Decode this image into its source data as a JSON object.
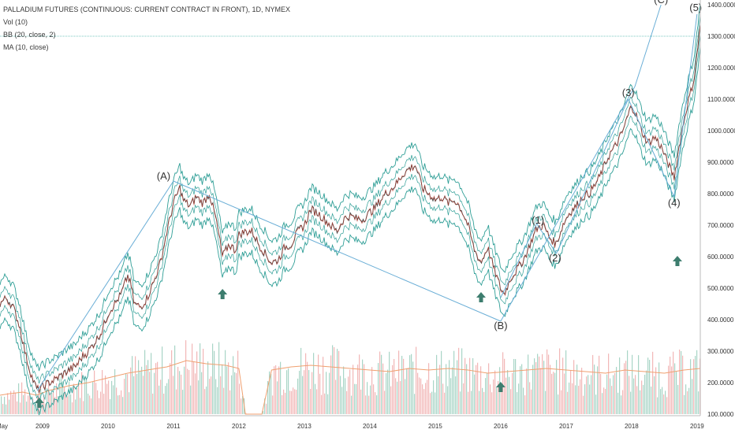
{
  "legend": {
    "title": "PALLADIUM FUTURES (CONTINUOUS: CURRENT CONTRACT IN FRONT), 1D, NYMEX",
    "vol": "Vol (10)",
    "bb": "BB (20, close, 2)",
    "ma": "MA (10, close)"
  },
  "colors": {
    "price_line": "#4a4a4a",
    "bb_band": "#2e9e96",
    "ma": "#c0392b",
    "volume_up": "#a8d5c6",
    "volume_down": "#f2b7b7",
    "volume_ma": "#f0a070",
    "wave_line": "#6aaed6",
    "arrow": "#3d7d6e",
    "hline": "#4db6ac",
    "axis_text": "#333333"
  },
  "chart_data": {
    "type": "line",
    "title": "PALLADIUM FUTURES (CONTINUOUS: CURRENT CONTRACT IN FRONT), 1D, NYMEX",
    "x_ticks": [
      "May",
      "2009",
      "2010",
      "2011",
      "2012",
      "2013",
      "2014",
      "2015",
      "2016",
      "2017",
      "2018",
      "2019"
    ],
    "y_ticks": [
      "1400.0000",
      "1300.0000",
      "1200.0000",
      "1100.0000",
      "1000.0000",
      "900.0000",
      "800.0000",
      "700.0000",
      "600.0000",
      "500.0000",
      "400.0000",
      "300.0000",
      "200.0000",
      "100.0000"
    ],
    "ylim": [
      95,
      1405
    ],
    "xlim": [
      2008.35,
      2019.05
    ],
    "horizontal_line": 1300,
    "price": [
      [
        2008.35,
        450
      ],
      [
        2008.45,
        470
      ],
      [
        2008.55,
        440
      ],
      [
        2008.65,
        380
      ],
      [
        2008.75,
        280
      ],
      [
        2008.85,
        210
      ],
      [
        2008.92,
        175
      ],
      [
        2009.0,
        185
      ],
      [
        2009.1,
        200
      ],
      [
        2009.2,
        210
      ],
      [
        2009.3,
        225
      ],
      [
        2009.4,
        240
      ],
      [
        2009.5,
        250
      ],
      [
        2009.6,
        280
      ],
      [
        2009.7,
        300
      ],
      [
        2009.8,
        330
      ],
      [
        2009.9,
        360
      ],
      [
        2010.0,
        420
      ],
      [
        2010.1,
        450
      ],
      [
        2010.2,
        480
      ],
      [
        2010.3,
        540
      ],
      [
        2010.35,
        510
      ],
      [
        2010.4,
        450
      ],
      [
        2010.5,
        440
      ],
      [
        2010.6,
        470
      ],
      [
        2010.7,
        520
      ],
      [
        2010.8,
        580
      ],
      [
        2010.9,
        680
      ],
      [
        2011.0,
        770
      ],
      [
        2011.1,
        820
      ],
      [
        2011.15,
        780
      ],
      [
        2011.25,
        760
      ],
      [
        2011.35,
        790
      ],
      [
        2011.45,
        770
      ],
      [
        2011.55,
        800
      ],
      [
        2011.65,
        720
      ],
      [
        2011.75,
        600
      ],
      [
        2011.85,
        640
      ],
      [
        2011.95,
        620
      ],
      [
        2012.0,
        670
      ],
      [
        2012.1,
        680
      ],
      [
        2012.2,
        680
      ],
      [
        2012.3,
        640
      ],
      [
        2012.4,
        610
      ],
      [
        2012.5,
        580
      ],
      [
        2012.6,
        590
      ],
      [
        2012.7,
        630
      ],
      [
        2012.8,
        640
      ],
      [
        2012.9,
        680
      ],
      [
        2013.0,
        700
      ],
      [
        2013.1,
        750
      ],
      [
        2013.2,
        740
      ],
      [
        2013.3,
        720
      ],
      [
        2013.4,
        700
      ],
      [
        2013.5,
        680
      ],
      [
        2013.6,
        720
      ],
      [
        2013.7,
        730
      ],
      [
        2013.8,
        720
      ],
      [
        2013.9,
        720
      ],
      [
        2014.0,
        740
      ],
      [
        2014.1,
        760
      ],
      [
        2014.2,
        790
      ],
      [
        2014.3,
        810
      ],
      [
        2014.4,
        830
      ],
      [
        2014.5,
        860
      ],
      [
        2014.6,
        880
      ],
      [
        2014.7,
        890
      ],
      [
        2014.8,
        820
      ],
      [
        2014.9,
        800
      ],
      [
        2015.0,
        780
      ],
      [
        2015.1,
        790
      ],
      [
        2015.2,
        770
      ],
      [
        2015.3,
        780
      ],
      [
        2015.4,
        750
      ],
      [
        2015.5,
        700
      ],
      [
        2015.6,
        620
      ],
      [
        2015.7,
        580
      ],
      [
        2015.8,
        630
      ],
      [
        2015.9,
        560
      ],
      [
        2016.0,
        500
      ],
      [
        2016.05,
        480
      ],
      [
        2016.15,
        530
      ],
      [
        2016.25,
        560
      ],
      [
        2016.35,
        590
      ],
      [
        2016.45,
        640
      ],
      [
        2016.55,
        690
      ],
      [
        2016.65,
        700
      ],
      [
        2016.75,
        660
      ],
      [
        2016.85,
        640
      ],
      [
        2016.95,
        700
      ],
      [
        2017.05,
        740
      ],
      [
        2017.15,
        760
      ],
      [
        2017.25,
        790
      ],
      [
        2017.35,
        800
      ],
      [
        2017.45,
        830
      ],
      [
        2017.55,
        870
      ],
      [
        2017.65,
        920
      ],
      [
        2017.75,
        950
      ],
      [
        2017.85,
        990
      ],
      [
        2017.95,
        1050
      ],
      [
        2018.0,
        1080
      ],
      [
        2018.05,
        1060
      ],
      [
        2018.15,
        1000
      ],
      [
        2018.25,
        960
      ],
      [
        2018.35,
        980
      ],
      [
        2018.45,
        950
      ],
      [
        2018.55,
        900
      ],
      [
        2018.65,
        850
      ],
      [
        2018.75,
        980
      ],
      [
        2018.85,
        1080
      ],
      [
        2018.95,
        1160
      ],
      [
        2019.0,
        1240
      ],
      [
        2019.05,
        1340
      ]
    ],
    "volume": [
      [
        2008.35,
        160
      ],
      [
        2008.5,
        165
      ],
      [
        2008.7,
        170
      ],
      [
        2008.9,
        160
      ],
      [
        2009.1,
        175
      ],
      [
        2009.4,
        190
      ],
      [
        2009.7,
        200
      ],
      [
        2010.0,
        215
      ],
      [
        2010.3,
        230
      ],
      [
        2010.6,
        240
      ],
      [
        2010.9,
        250
      ],
      [
        2011.2,
        270
      ],
      [
        2011.5,
        260
      ],
      [
        2011.8,
        255
      ],
      [
        2012.0,
        245
      ],
      [
        2012.1,
        100
      ],
      [
        2012.35,
        100
      ],
      [
        2012.5,
        240
      ],
      [
        2012.8,
        250
      ],
      [
        2013.1,
        255
      ],
      [
        2013.4,
        250
      ],
      [
        2013.7,
        245
      ],
      [
        2014.0,
        240
      ],
      [
        2014.3,
        235
      ],
      [
        2014.6,
        245
      ],
      [
        2014.9,
        240
      ],
      [
        2015.2,
        245
      ],
      [
        2015.5,
        240
      ],
      [
        2015.8,
        230
      ],
      [
        2016.1,
        235
      ],
      [
        2016.4,
        240
      ],
      [
        2016.7,
        245
      ],
      [
        2017.0,
        240
      ],
      [
        2017.3,
        235
      ],
      [
        2017.6,
        230
      ],
      [
        2017.9,
        240
      ],
      [
        2018.2,
        235
      ],
      [
        2018.5,
        230
      ],
      [
        2018.8,
        240
      ],
      [
        2019.05,
        245
      ]
    ],
    "wave_lines": [
      [
        [
          2008.92,
          175
        ],
        [
          2011.0,
          840
        ]
      ],
      [
        [
          2011.0,
          840
        ],
        [
          2016.0,
          395
        ]
      ],
      [
        [
          2016.0,
          395
        ],
        [
          2018.05,
          1140
        ]
      ],
      [
        [
          2018.05,
          1140
        ],
        [
          2018.45,
          1400
        ]
      ],
      [
        [
          2016.0,
          470
        ],
        [
          2016.55,
          705
        ]
      ],
      [
        [
          2016.55,
          705
        ],
        [
          2016.85,
          610
        ]
      ],
      [
        [
          2016.85,
          610
        ],
        [
          2017.95,
          1100
        ]
      ],
      [
        [
          2017.95,
          1100
        ],
        [
          2018.65,
          790
        ]
      ],
      [
        [
          2018.65,
          790
        ],
        [
          2019.0,
          1370
        ]
      ]
    ],
    "wave_labels": [
      {
        "text": "(A)",
        "x": 2010.85,
        "y": 845
      },
      {
        "text": "(B)",
        "x": 2016.0,
        "y": 370
      },
      {
        "text": "(C)",
        "x": 2018.45,
        "y": 1405
      },
      {
        "text": "(1)",
        "x": 2016.57,
        "y": 705
      },
      {
        "text": "(2)",
        "x": 2016.83,
        "y": 585
      },
      {
        "text": "(3)",
        "x": 2017.95,
        "y": 1110
      },
      {
        "text": "(4)",
        "x": 2018.65,
        "y": 760
      },
      {
        "text": "(5)",
        "x": 2018.98,
        "y": 1380
      }
    ],
    "arrows": [
      {
        "x": 2008.95,
        "y": 135
      },
      {
        "x": 2011.75,
        "y": 480
      },
      {
        "x": 2015.7,
        "y": 470
      },
      {
        "x": 2016.0,
        "y": 185
      },
      {
        "x": 2018.7,
        "y": 585
      }
    ]
  }
}
